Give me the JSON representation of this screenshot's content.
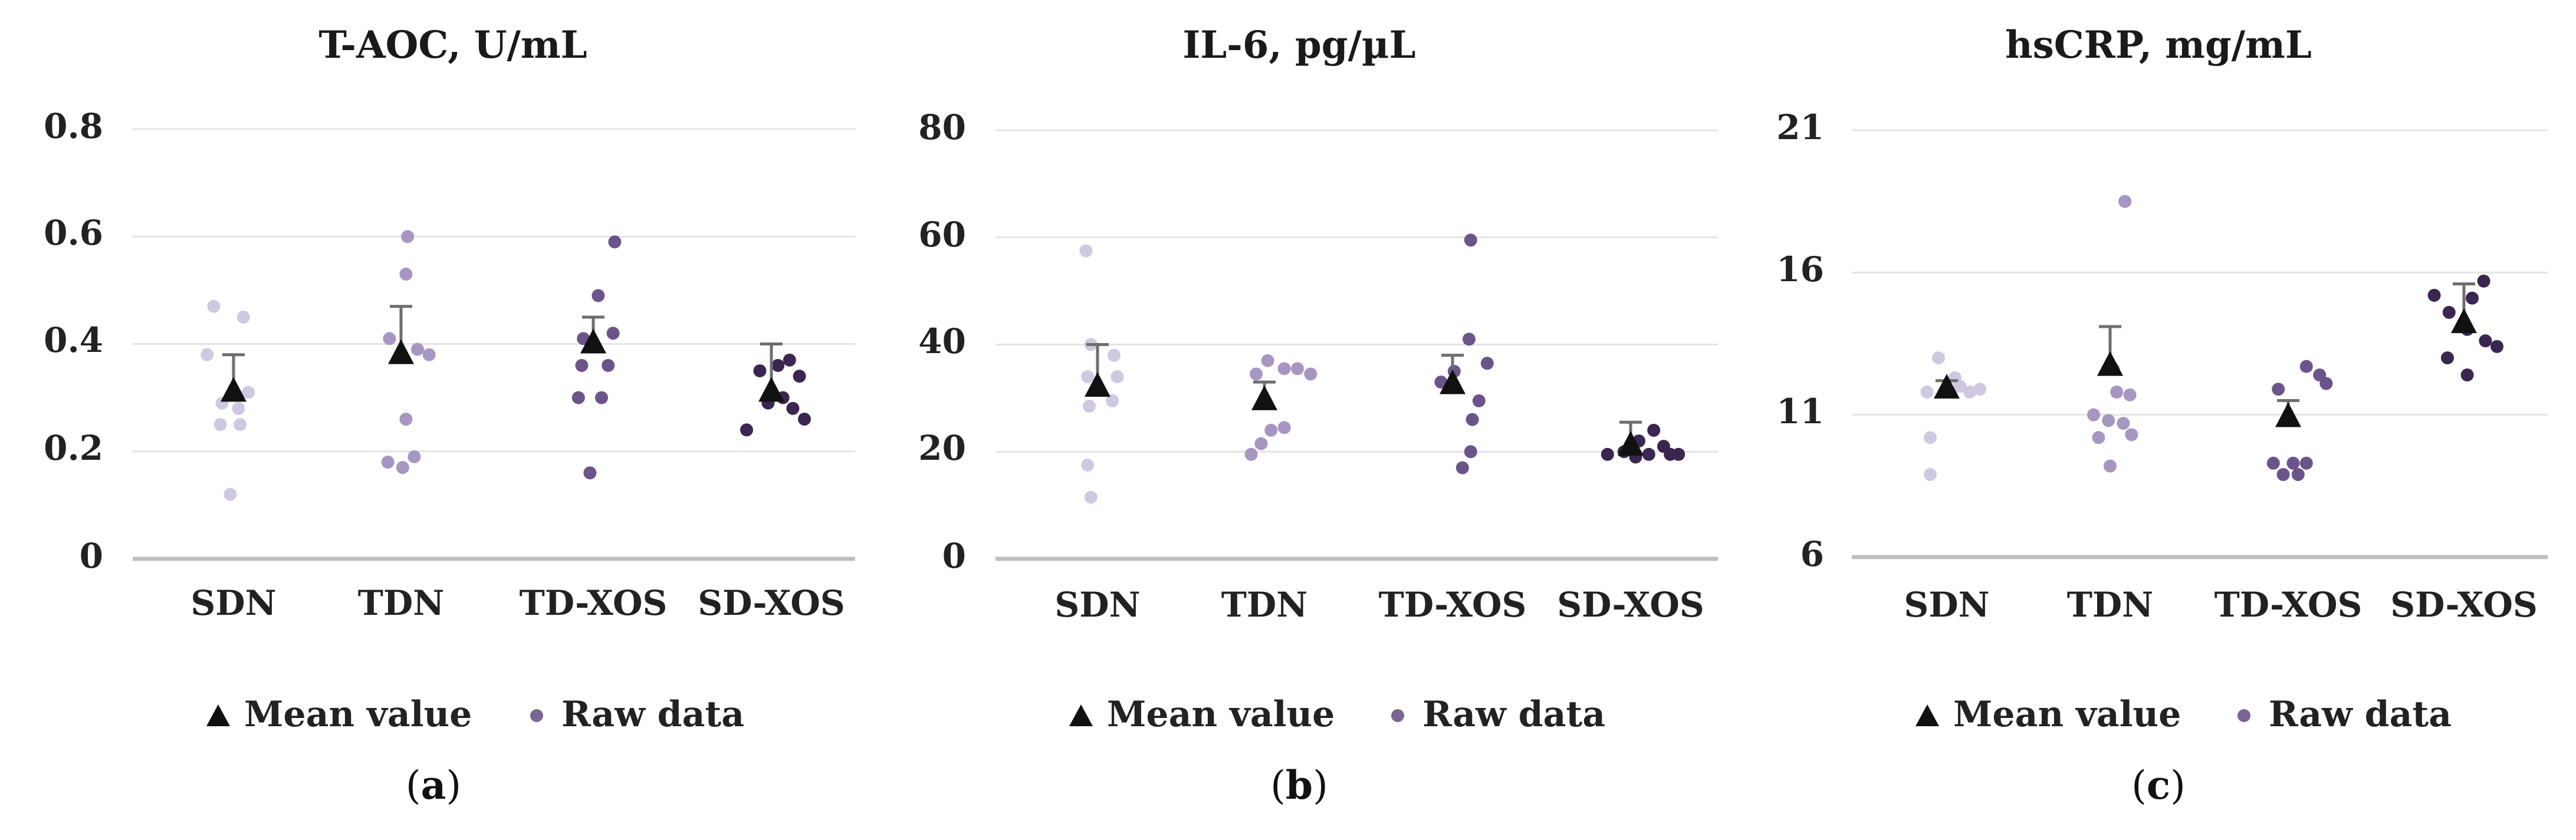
{
  "colors": {
    "text": "#222222",
    "grid": "#e4e4e4",
    "axis": "#bdbdbd",
    "errbar": "#6e6e6e",
    "mean": "#111111",
    "legend_point": "#7a6594",
    "group_points": [
      "#d0c8e0",
      "#a796c2",
      "#6b5489",
      "#3a2650"
    ]
  },
  "legend": {
    "mean_label": "Mean value",
    "raw_label": "Raw data"
  },
  "chart_data": [
    {
      "type": "scatter",
      "title": "T-AOC, U/mL",
      "panel_label": "a",
      "categories": [
        "SDN",
        "TDN",
        "TD-XOS",
        "SD-XOS"
      ],
      "yticks": [
        "0",
        "0.2",
        "0.4",
        "0.6",
        "0.8"
      ],
      "ylim": [
        0,
        0.8
      ],
      "means": [
        0.31,
        0.38,
        0.4,
        0.31
      ],
      "err_upper": [
        0.38,
        0.47,
        0.45,
        0.4
      ],
      "raw": [
        [
          [
            -0.12,
            0.47
          ],
          [
            0.06,
            0.45
          ],
          [
            -0.16,
            0.38
          ],
          [
            -0.07,
            0.29
          ],
          [
            0.09,
            0.31
          ],
          [
            0.03,
            0.28
          ],
          [
            -0.08,
            0.25
          ],
          [
            0.04,
            0.25
          ],
          [
            -0.02,
            0.12
          ]
        ],
        [
          [
            0.04,
            0.6
          ],
          [
            0.03,
            0.53
          ],
          [
            -0.07,
            0.41
          ],
          [
            0.1,
            0.39
          ],
          [
            0.17,
            0.38
          ],
          [
            0.03,
            0.26
          ],
          [
            0.08,
            0.19
          ],
          [
            -0.08,
            0.18
          ],
          [
            0.01,
            0.17
          ]
        ],
        [
          [
            0.13,
            0.59
          ],
          [
            0.03,
            0.49
          ],
          [
            -0.06,
            0.41
          ],
          [
            0.12,
            0.42
          ],
          [
            -0.07,
            0.36
          ],
          [
            0.09,
            0.36
          ],
          [
            -0.09,
            0.3
          ],
          [
            0.05,
            0.3
          ],
          [
            -0.02,
            0.16
          ]
        ],
        [
          [
            -0.07,
            0.35
          ],
          [
            0.11,
            0.37
          ],
          [
            0.04,
            0.36
          ],
          [
            0.17,
            0.34
          ],
          [
            0.07,
            0.3
          ],
          [
            -0.02,
            0.29
          ],
          [
            0.13,
            0.28
          ],
          [
            0.2,
            0.26
          ],
          [
            -0.15,
            0.24
          ]
        ]
      ]
    },
    {
      "type": "scatter",
      "title": "IL-6, pg/µL",
      "panel_label": "b",
      "categories": [
        "SDN",
        "TDN",
        "TD-XOS",
        "SD-XOS"
      ],
      "yticks": [
        "0",
        "20",
        "40",
        "60",
        "80"
      ],
      "ylim": [
        0,
        80
      ],
      "means": [
        32,
        29.5,
        32.5,
        21
      ],
      "err_upper": [
        40,
        33,
        38,
        25.5
      ],
      "raw": [
        [
          [
            -0.07,
            57.5
          ],
          [
            -0.04,
            40
          ],
          [
            0.1,
            38
          ],
          [
            -0.06,
            34
          ],
          [
            0.12,
            34
          ],
          [
            -0.05,
            28.5
          ],
          [
            0.09,
            29.5
          ],
          [
            -0.06,
            17.5
          ],
          [
            -0.04,
            11.5
          ]
        ],
        [
          [
            0.02,
            37
          ],
          [
            0.12,
            35.5
          ],
          [
            0.2,
            35.5
          ],
          [
            -0.05,
            34.5
          ],
          [
            0.28,
            34.5
          ],
          [
            0.12,
            24.5
          ],
          [
            0.04,
            24
          ],
          [
            -0.02,
            21.5
          ],
          [
            -0.08,
            19.5
          ]
        ],
        [
          [
            0.11,
            59.5
          ],
          [
            0.1,
            41
          ],
          [
            0.21,
            36.5
          ],
          [
            0.01,
            35
          ],
          [
            -0.07,
            33
          ],
          [
            0.16,
            29.5
          ],
          [
            0.12,
            26
          ],
          [
            0.11,
            20
          ],
          [
            0.06,
            17
          ]
        ],
        [
          [
            -0.14,
            19.5
          ],
          [
            -0.04,
            20
          ],
          [
            0.05,
            22
          ],
          [
            0.14,
            24
          ],
          [
            0.2,
            21
          ],
          [
            0.24,
            19.5
          ],
          [
            0.11,
            19.5
          ],
          [
            0.03,
            19
          ],
          [
            0.29,
            19.5
          ]
        ]
      ]
    },
    {
      "type": "scatter",
      "title": "hsCRP, mg/mL",
      "panel_label": "c",
      "categories": [
        "SDN",
        "TDN",
        "TD-XOS",
        "SD-XOS"
      ],
      "yticks": [
        "6",
        "11",
        "16",
        "21"
      ],
      "ylim": [
        6,
        21
      ],
      "means": [
        11.9,
        12.7,
        10.9,
        14.2
      ],
      "err_upper": [
        12.2,
        14.1,
        11.5,
        15.6
      ],
      "raw": [
        [
          [
            -0.05,
            13.0
          ],
          [
            0.05,
            12.3
          ],
          [
            -0.12,
            11.8
          ],
          [
            0.0,
            11.8
          ],
          [
            0.08,
            12.0
          ],
          [
            0.14,
            11.8
          ],
          [
            0.2,
            11.9
          ],
          [
            -0.1,
            10.2
          ],
          [
            -0.1,
            8.9
          ]
        ],
        [
          [
            0.09,
            18.5
          ],
          [
            0.02,
            12.6
          ],
          [
            -0.1,
            11.0
          ],
          [
            0.04,
            11.8
          ],
          [
            0.12,
            11.7
          ],
          [
            -0.01,
            10.8
          ],
          [
            0.08,
            10.7
          ],
          [
            0.13,
            10.3
          ],
          [
            -0.07,
            10.2
          ],
          [
            0.0,
            9.2
          ]
        ],
        [
          [
            0.11,
            12.7
          ],
          [
            0.19,
            12.4
          ],
          [
            0.23,
            12.1
          ],
          [
            -0.06,
            11.9
          ],
          [
            -0.09,
            9.3
          ],
          [
            0.03,
            9.3
          ],
          [
            -0.03,
            8.9
          ],
          [
            0.06,
            8.9
          ],
          [
            0.11,
            9.3
          ]
        ],
        [
          [
            -0.18,
            15.2
          ],
          [
            0.12,
            15.7
          ],
          [
            0.05,
            15.1
          ],
          [
            -0.09,
            14.6
          ],
          [
            0.02,
            14.0
          ],
          [
            -0.1,
            13.0
          ],
          [
            0.13,
            13.6
          ],
          [
            0.2,
            13.4
          ],
          [
            0.02,
            12.4
          ]
        ]
      ]
    }
  ]
}
